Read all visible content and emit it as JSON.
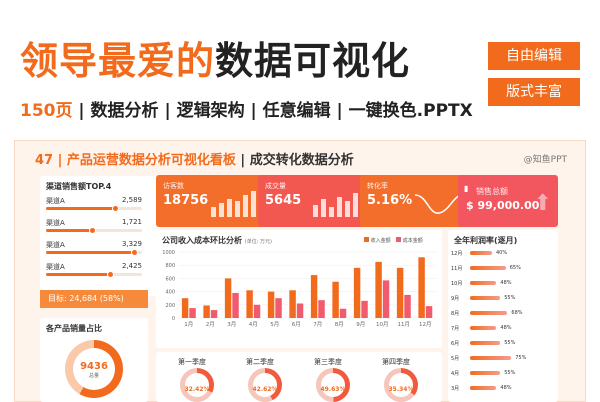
{
  "hero": {
    "title_orange": "领导最爱的",
    "title_dark": "数据可视化",
    "subtitle_count": "150页",
    "subtitle_rest": " | 数据分析 | 逻辑架构 | 任意编辑 | 一键换色.PPTX",
    "tag1": "自由编辑",
    "tag2": "版式丰富"
  },
  "board": {
    "title": "47 | 产品运营数据分析可视化看板",
    "title2": " | 成交转化数据分析",
    "logo": "@知鱼PPT"
  },
  "rank": {
    "title": "渠道销售额TOP.4",
    "items": [
      {
        "name": "渠道A",
        "value": "2,589",
        "pct": 0.72
      },
      {
        "name": "渠道A",
        "value": "1,721",
        "pct": 0.48
      },
      {
        "name": "渠道A",
        "value": "3,329",
        "pct": 0.92
      },
      {
        "name": "渠道A",
        "value": "2,425",
        "pct": 0.67
      }
    ],
    "goal": "目标: 24,684 (58%)"
  },
  "pie": {
    "title": "各产品销量占比",
    "value": "9436",
    "label": "总量"
  },
  "kpis": [
    {
      "label": "访客数",
      "value": "18756"
    },
    {
      "label": "成交量",
      "value": "5645"
    },
    {
      "label": "转化率",
      "value": "5.16%"
    },
    {
      "label": "销售总额",
      "value": "$ 99,000.00"
    }
  ],
  "bar_chart": {
    "title": "公司收入成本环比分析",
    "unit": "(单位: 万元)",
    "legend_income": "收入金额",
    "legend_cost": "成本金额",
    "colors": {
      "income": "#f26b1d",
      "cost": "#f25a6e"
    }
  },
  "profit": {
    "title": "全年利润率(逐月)",
    "items": [
      {
        "month": "12月",
        "value": "40%",
        "pct": 0.4
      },
      {
        "month": "11月",
        "value": "65%",
        "pct": 0.65
      },
      {
        "month": "10月",
        "value": "48%",
        "pct": 0.48
      },
      {
        "month": "9月",
        "value": "55%",
        "pct": 0.55
      },
      {
        "month": "8月",
        "value": "68%",
        "pct": 0.68
      },
      {
        "month": "7月",
        "value": "48%",
        "pct": 0.48
      },
      {
        "month": "6月",
        "value": "55%",
        "pct": 0.55
      },
      {
        "month": "5月",
        "value": "75%",
        "pct": 0.75
      },
      {
        "month": "4月",
        "value": "55%",
        "pct": 0.55
      },
      {
        "month": "3月",
        "value": "48%",
        "pct": 0.48
      }
    ]
  },
  "quarters": [
    {
      "label": "第一季度",
      "value": "32.42%"
    },
    {
      "label": "第二季度",
      "value": "42.62%"
    },
    {
      "label": "第三季度",
      "value": "49.63%"
    },
    {
      "label": "第四季度",
      "value": "35.34%"
    }
  ],
  "chart_data": {
    "type": "bar",
    "title": "公司收入成本环比分析",
    "categories": [
      "1月",
      "2月",
      "3月",
      "4月",
      "5月",
      "6月",
      "7月",
      "8月",
      "9月",
      "10月",
      "11月",
      "12月"
    ],
    "series": [
      {
        "name": "收入金额",
        "values": [
          300,
          190,
          600,
          420,
          400,
          420,
          650,
          550,
          760,
          850,
          760,
          920
        ]
      },
      {
        "name": "成本金额",
        "values": [
          150,
          120,
          380,
          200,
          300,
          220,
          270,
          140,
          260,
          570,
          350,
          180
        ]
      }
    ],
    "ylim": [
      0,
      1000
    ],
    "yticks": [
      0,
      200,
      400,
      600,
      800,
      1000
    ]
  }
}
